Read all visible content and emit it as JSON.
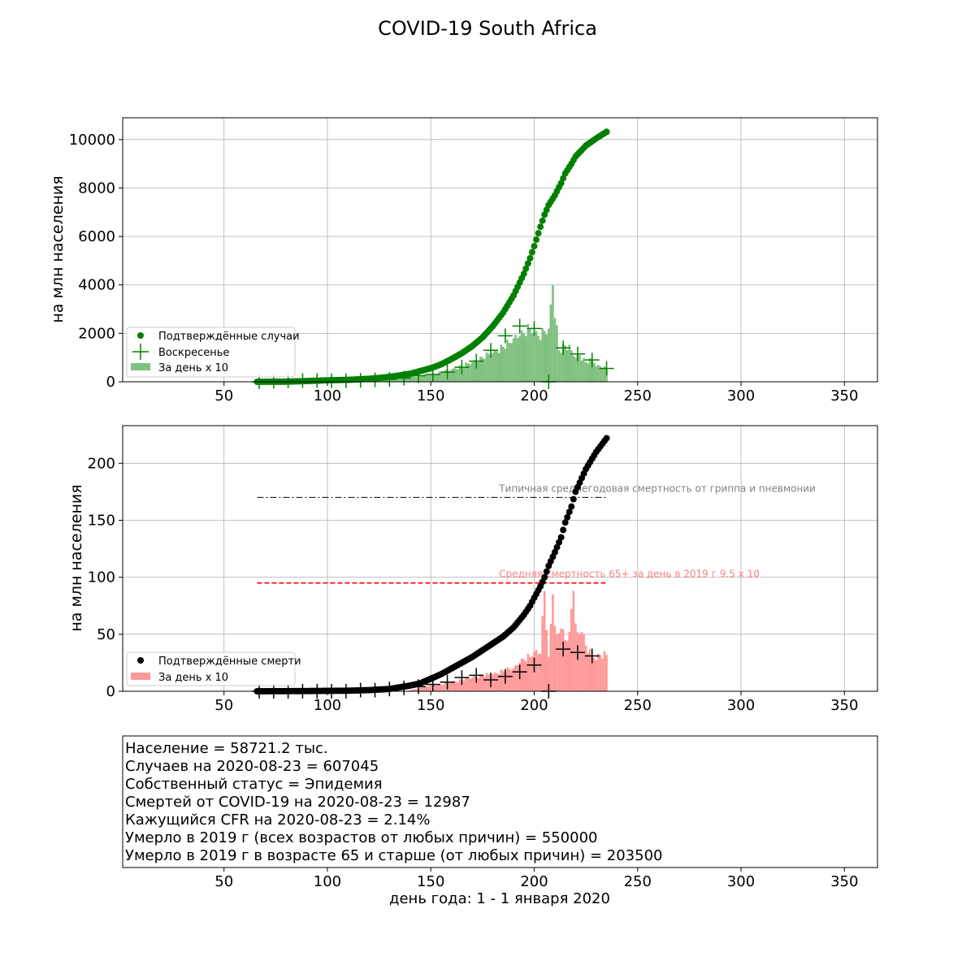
{
  "title": "COVID-19 South Africa",
  "xlabel": "день года: 1 - 1 января 2020",
  "chart_data": [
    {
      "type": "scatter",
      "ylabel": "на млн населения",
      "xlim": [
        1,
        366
      ],
      "ylim": [
        0,
        10900
      ],
      "xticks": [
        50,
        100,
        150,
        200,
        250,
        300,
        350
      ],
      "yticks": [
        0,
        2000,
        4000,
        6000,
        8000,
        10000
      ],
      "grid": true,
      "legend_position": "lower-left",
      "legend": [
        "Подтверждённые случаи",
        "Воскресенье",
        "За день х 10"
      ],
      "colors": {
        "points": "#008000",
        "bars": "#80c080",
        "sunday": "#008000"
      },
      "cumulative": {
        "name": "Подтверждённые случаи",
        "x": [
          66,
          80,
          90,
          100,
          110,
          120,
          130,
          140,
          150,
          155,
          160,
          165,
          170,
          175,
          180,
          185,
          190,
          195,
          198,
          200,
          203,
          205,
          207,
          210,
          213,
          215,
          218,
          220,
          225,
          230,
          235
        ],
        "y": [
          0,
          5,
          30,
          60,
          80,
          120,
          200,
          330,
          560,
          720,
          940,
          1180,
          1470,
          1830,
          2300,
          2860,
          3560,
          4460,
          5100,
          5600,
          6400,
          6900,
          7300,
          7700,
          8200,
          8600,
          9000,
          9300,
          9750,
          10050,
          10320
        ]
      },
      "daily_x10": {
        "name": "За день х 10",
        "x": [
          66,
          80,
          90,
          100,
          110,
          120,
          130,
          140,
          150,
          155,
          160,
          165,
          170,
          175,
          180,
          185,
          188,
          190,
          193,
          195,
          198,
          200,
          202,
          205,
          207,
          209,
          212,
          215,
          218,
          220,
          222,
          225,
          228,
          231,
          235
        ],
        "y": [
          0,
          20,
          40,
          40,
          40,
          60,
          100,
          200,
          300,
          400,
          500,
          650,
          800,
          1000,
          1200,
          1450,
          1600,
          1800,
          1900,
          2000,
          2200,
          2050,
          1900,
          2100,
          2200,
          4000,
          1300,
          1500,
          1300,
          1000,
          1100,
          800,
          900,
          700,
          550
        ]
      },
      "sunday": {
        "name": "Воскресенье",
        "x": [
          67,
          74,
          81,
          88,
          95,
          102,
          109,
          116,
          123,
          130,
          137,
          144,
          151,
          158,
          165,
          172,
          179,
          186,
          193,
          200,
          207,
          214,
          221,
          228,
          235
        ],
        "y": [
          0,
          20,
          40,
          50,
          50,
          40,
          40,
          60,
          80,
          100,
          150,
          250,
          300,
          400,
          600,
          850,
          1300,
          1900,
          2300,
          2200,
          0,
          1400,
          1150,
          900,
          550
        ]
      }
    },
    {
      "type": "scatter",
      "ylabel": "на млн населения",
      "xlim": [
        1,
        366
      ],
      "ylim": [
        0,
        233
      ],
      "xticks": [
        50,
        100,
        150,
        200,
        250,
        300,
        350
      ],
      "yticks": [
        0,
        50,
        100,
        150,
        200
      ],
      "grid": true,
      "legend_position": "lower-left",
      "legend": [
        "Подтверждённые смерти",
        "За день х 10"
      ],
      "colors": {
        "points": "#000000",
        "bars": "#ff9999",
        "flu_line": "#000000",
        "elderly_line": "#ff0000"
      },
      "cumulative": {
        "name": "Подтверждённые смерти",
        "x": [
          66,
          90,
          110,
          120,
          130,
          140,
          145,
          150,
          155,
          160,
          165,
          170,
          175,
          180,
          185,
          190,
          195,
          198,
          200,
          203,
          205,
          207,
          210,
          213,
          215,
          218,
          220,
          225,
          230,
          235
        ],
        "y": [
          0,
          0.2,
          0.5,
          1,
          2,
          5,
          7,
          11,
          15,
          20,
          25,
          30,
          36,
          42,
          48,
          56,
          67,
          75,
          82,
          92,
          100,
          110,
          122,
          135,
          148,
          162,
          175,
          195,
          210,
          222
        ]
      },
      "daily_x10": {
        "name": "За день х 10",
        "x": [
          140,
          145,
          150,
          155,
          160,
          165,
          170,
          175,
          180,
          185,
          190,
          193,
          195,
          198,
          200,
          203,
          205,
          207,
          209,
          211,
          213,
          215,
          217,
          219,
          221,
          223,
          225,
          228,
          231,
          235
        ],
        "y": [
          1,
          3,
          5,
          6,
          8,
          10,
          12,
          14,
          15,
          18,
          20,
          25,
          28,
          30,
          35,
          33,
          88,
          30,
          85,
          50,
          55,
          45,
          52,
          88,
          52,
          52,
          40,
          30,
          33,
          32
        ]
      },
      "sunday": {
        "x": [
          67,
          74,
          81,
          88,
          95,
          102,
          109,
          116,
          123,
          130,
          137,
          144,
          151,
          158,
          165,
          172,
          179,
          186,
          193,
          200,
          207,
          214,
          221,
          228
        ],
        "y": [
          0,
          0,
          0,
          0,
          0,
          0,
          0,
          1,
          1,
          2,
          3,
          4,
          6,
          8,
          12,
          14,
          10,
          13,
          17,
          23,
          0,
          37,
          34,
          31
        ]
      },
      "reference_lines": [
        {
          "label": "Типичная среднегодовая смертность от гриппа и пневмонии",
          "y": 170,
          "x_start": 66,
          "x_end": 235,
          "color": "#000000",
          "style": "dashdot",
          "label_color": "#808080"
        },
        {
          "label": "Средняя смертность 65+ за день в 2019 г 9.5 х 10",
          "y": 95,
          "x_start": 66,
          "x_end": 235,
          "color": "#ff0000",
          "style": "dashed",
          "label_color": "#ff8080"
        }
      ]
    }
  ],
  "info_panel": {
    "lines": [
      "Население = 58721.2 тыс.",
      "Случаев на 2020-08-23 = 607045",
      "Собственный статус = Эпидемия",
      "Смертей от COVID-19 на 2020-08-23 = 12987",
      "Кажущийся CFR на 2020-08-23 = 2.14%",
      "Умерло в 2019 г (всех возрастов от любых причин) = 550000",
      "Умерло в 2019 г в возрасте 65 и старше (от любых причин) = 203500"
    ],
    "xticks": [
      50,
      100,
      150,
      200,
      250,
      300,
      350
    ]
  }
}
